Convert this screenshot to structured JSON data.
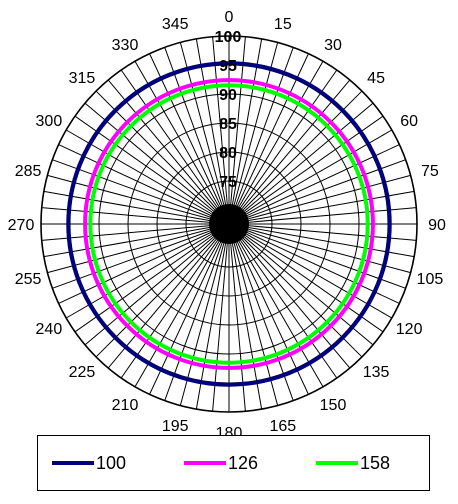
{
  "chart_data": {
    "type": "polar-line",
    "title": "",
    "angle_ticks": [
      "0",
      "15",
      "30",
      "45",
      "60",
      "75",
      "90",
      "105",
      "120",
      "135",
      "150",
      "165",
      "180",
      "195",
      "210",
      "225",
      "240",
      "255",
      "270",
      "285",
      "300",
      "315",
      "330",
      "345"
    ],
    "angle_minor_step_deg": 5,
    "radial_range": [
      70,
      100
    ],
    "radial_ticks": [
      "75",
      "80",
      "85",
      "90",
      "95",
      "100"
    ],
    "radial_tick_values": [
      75,
      80,
      85,
      90,
      95,
      100
    ],
    "series": [
      {
        "name": "100",
        "color": "#00007f",
        "radius_value": 95.3
      },
      {
        "name": "126",
        "color": "#ff00ff",
        "radius_value": 92.4
      },
      {
        "name": "158",
        "color": "#00ff00",
        "radius_value": 91.5
      }
    ],
    "grid": true,
    "legend_position": "bottom"
  }
}
